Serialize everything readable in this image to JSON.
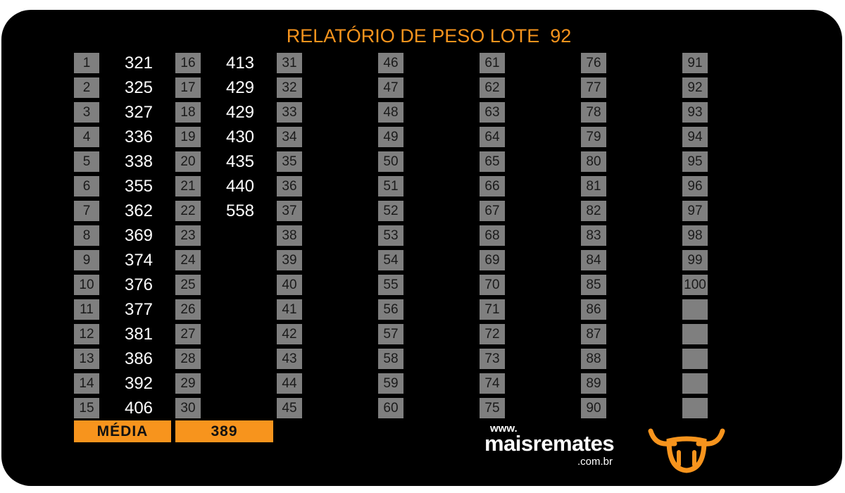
{
  "header": {
    "title": "RELATÓRIO DE PESO LOTE  92"
  },
  "animals": [
    {
      "number": 1,
      "weight": 321
    },
    {
      "number": 2,
      "weight": 325
    },
    {
      "number": 3,
      "weight": 327
    },
    {
      "number": 4,
      "weight": 336
    },
    {
      "number": 5,
      "weight": 338
    },
    {
      "number": 6,
      "weight": 355
    },
    {
      "number": 7,
      "weight": 362
    },
    {
      "number": 8,
      "weight": 369
    },
    {
      "number": 9,
      "weight": 374
    },
    {
      "number": 10,
      "weight": 376
    },
    {
      "number": 11,
      "weight": 377
    },
    {
      "number": 12,
      "weight": 381
    },
    {
      "number": 13,
      "weight": 386
    },
    {
      "number": 14,
      "weight": 392
    },
    {
      "number": 15,
      "weight": 406
    },
    {
      "number": 16,
      "weight": 413
    },
    {
      "number": 17,
      "weight": 429
    },
    {
      "number": 18,
      "weight": 429
    },
    {
      "number": 19,
      "weight": 430
    },
    {
      "number": 20,
      "weight": 435
    },
    {
      "number": 21,
      "weight": 440
    },
    {
      "number": 22,
      "weight": 558
    },
    {
      "number": 23
    },
    {
      "number": 24
    },
    {
      "number": 25
    },
    {
      "number": 26
    },
    {
      "number": 27
    },
    {
      "number": 28
    },
    {
      "number": 29
    },
    {
      "number": 30
    },
    {
      "number": 31
    },
    {
      "number": 32
    },
    {
      "number": 33
    },
    {
      "number": 34
    },
    {
      "number": 35
    },
    {
      "number": 36
    },
    {
      "number": 37
    },
    {
      "number": 38
    },
    {
      "number": 39
    },
    {
      "number": 40
    },
    {
      "number": 41
    },
    {
      "number": 42
    },
    {
      "number": 43
    },
    {
      "number": 44
    },
    {
      "number": 45
    },
    {
      "number": 46
    },
    {
      "number": 47
    },
    {
      "number": 48
    },
    {
      "number": 49
    },
    {
      "number": 50
    },
    {
      "number": 51
    },
    {
      "number": 52
    },
    {
      "number": 53
    },
    {
      "number": 54
    },
    {
      "number": 55
    },
    {
      "number": 56
    },
    {
      "number": 57
    },
    {
      "number": 58
    },
    {
      "number": 59
    },
    {
      "number": 60
    },
    {
      "number": 61
    },
    {
      "number": 62
    },
    {
      "number": 63
    },
    {
      "number": 64
    },
    {
      "number": 65
    },
    {
      "number": 66
    },
    {
      "number": 67
    },
    {
      "number": 68
    },
    {
      "number": 69
    },
    {
      "number": 70
    },
    {
      "number": 71
    },
    {
      "number": 72
    },
    {
      "number": 73
    },
    {
      "number": 74
    },
    {
      "number": 75
    },
    {
      "number": 76
    },
    {
      "number": 77
    },
    {
      "number": 78
    },
    {
      "number": 79
    },
    {
      "number": 80
    },
    {
      "number": 81
    },
    {
      "number": 82
    },
    {
      "number": 83
    },
    {
      "number": 84
    },
    {
      "number": 85
    },
    {
      "number": 86
    },
    {
      "number": 87
    },
    {
      "number": 88
    },
    {
      "number": 89
    },
    {
      "number": 90
    },
    {
      "number": 91
    },
    {
      "number": 92
    },
    {
      "number": 93
    },
    {
      "number": 94
    },
    {
      "number": 95
    },
    {
      "number": 96
    },
    {
      "number": 97
    },
    {
      "number": 98
    },
    {
      "number": 99
    },
    {
      "number": 100
    }
  ],
  "summary": {
    "label": "MÉDIA",
    "value": 389
  },
  "logo": {
    "prefix": "www.",
    "name": "maisremates",
    "suffix": ".com.br"
  }
}
